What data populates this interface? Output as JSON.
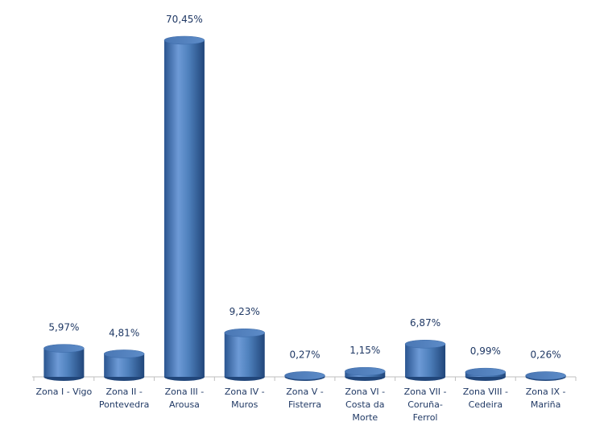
{
  "chart_data": {
    "type": "bar",
    "categories": [
      "Zona I - Vigo",
      "Zona II - Pontevedra",
      "Zona III - Arousa",
      "Zona IV - Muros",
      "Zona V - Fisterra",
      "Zona VI - Costa da Morte",
      "Zona VII - Coruña-Ferrol",
      "Zona VIII - Cedeira",
      "Zona IX - Mariña"
    ],
    "values": [
      5.97,
      4.81,
      70.45,
      9.23,
      0.27,
      1.15,
      6.87,
      0.99,
      0.26
    ],
    "value_labels": [
      "5,97%",
      "4,81%",
      "70,45%",
      "9,23%",
      "0,27%",
      "1,15%",
      "6,87%",
      "0,99%",
      "0,26%"
    ],
    "color": "#4f81bd"
  }
}
